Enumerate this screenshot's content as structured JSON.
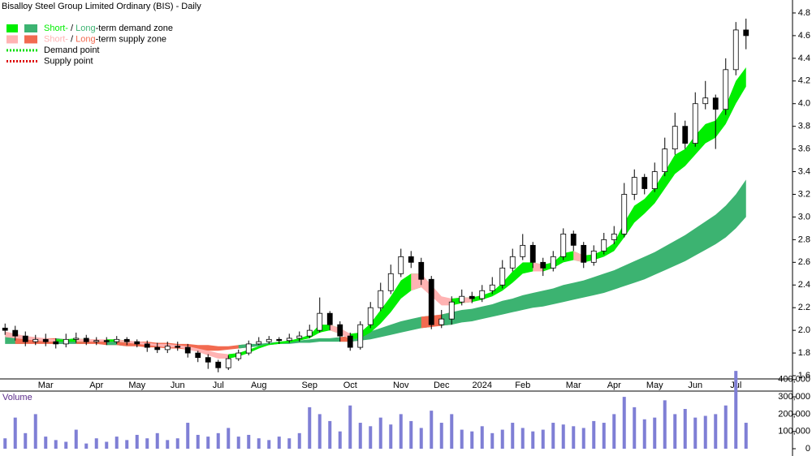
{
  "chart_data": [
    {
      "type": "candlestick",
      "title": "Bisalloy Steel Group Limited Ordinary (BIS) - Daily",
      "categories": [
        null,
        null,
        null,
        null,
        "Mar",
        null,
        null,
        null,
        null,
        "Apr",
        null,
        null,
        null,
        "May",
        null,
        null,
        null,
        "Jun",
        null,
        null,
        null,
        "Jul",
        null,
        null,
        null,
        "Aug",
        null,
        null,
        null,
        null,
        "Sep",
        null,
        null,
        null,
        "Oct",
        null,
        null,
        null,
        null,
        "Nov",
        null,
        null,
        null,
        "Dec",
        null,
        null,
        null,
        "2024",
        null,
        null,
        null,
        "Feb",
        null,
        null,
        null,
        null,
        "Mar",
        null,
        null,
        null,
        "Apr",
        null,
        null,
        null,
        "May",
        null,
        null,
        null,
        "Jun",
        null,
        null,
        null,
        "Jul",
        null
      ],
      "open": [
        2.02,
        2.0,
        1.95,
        1.9,
        1.92,
        1.9,
        1.88,
        1.92,
        1.93,
        1.9,
        1.91,
        1.9,
        1.92,
        1.9,
        1.88,
        1.85,
        1.83,
        1.86,
        1.85,
        1.8,
        1.76,
        1.72,
        1.67,
        1.75,
        1.8,
        1.88,
        1.9,
        1.92,
        1.91,
        1.93,
        1.95,
        2.0,
        2.15,
        2.05,
        1.95,
        1.85,
        2.05,
        2.2,
        2.35,
        2.5,
        2.65,
        2.6,
        2.45,
        2.05,
        2.1,
        2.25,
        2.3,
        2.28,
        2.35,
        2.4,
        2.55,
        2.65,
        2.75,
        2.6,
        2.55,
        2.65,
        2.85,
        2.75,
        2.6,
        2.7,
        2.8,
        2.85,
        3.2,
        3.35,
        3.25,
        3.4,
        3.6,
        3.8,
        3.65,
        4.0,
        4.05,
        3.95,
        4.3,
        4.65
      ],
      "high": [
        2.06,
        2.04,
        1.99,
        1.96,
        1.97,
        1.93,
        1.97,
        1.98,
        1.96,
        1.94,
        1.94,
        1.95,
        1.94,
        1.92,
        1.91,
        1.89,
        1.9,
        1.9,
        1.88,
        1.82,
        1.79,
        1.74,
        1.78,
        1.83,
        1.91,
        1.94,
        1.95,
        1.94,
        1.97,
        1.99,
        2.05,
        2.29,
        2.17,
        2.08,
        1.98,
        2.08,
        2.25,
        2.42,
        2.58,
        2.72,
        2.7,
        2.64,
        2.48,
        2.18,
        2.3,
        2.36,
        2.34,
        2.4,
        2.47,
        2.62,
        2.72,
        2.85,
        2.78,
        2.64,
        2.7,
        2.9,
        2.88,
        2.78,
        2.75,
        2.86,
        2.92,
        3.3,
        3.42,
        3.38,
        3.48,
        3.7,
        3.92,
        3.85,
        4.1,
        4.2,
        4.08,
        4.4,
        4.72,
        4.75
      ],
      "low": [
        1.96,
        1.91,
        1.86,
        1.87,
        1.86,
        1.84,
        1.85,
        1.89,
        1.87,
        1.87,
        1.87,
        1.88,
        1.87,
        1.85,
        1.81,
        1.8,
        1.8,
        1.82,
        1.76,
        1.72,
        1.66,
        1.63,
        1.65,
        1.73,
        1.78,
        1.87,
        1.88,
        1.88,
        1.89,
        1.9,
        1.93,
        1.98,
        2.0,
        1.9,
        1.82,
        1.83,
        2.02,
        2.17,
        2.32,
        2.47,
        2.55,
        2.4,
        2.01,
        2.02,
        2.05,
        2.22,
        2.24,
        2.25,
        2.32,
        2.37,
        2.52,
        2.62,
        2.55,
        2.48,
        2.52,
        2.62,
        2.7,
        2.55,
        2.57,
        2.67,
        2.76,
        2.82,
        3.15,
        3.2,
        3.22,
        3.36,
        3.55,
        3.6,
        3.62,
        3.95,
        3.6,
        3.9,
        4.25,
        4.48
      ],
      "close": [
        2.0,
        1.95,
        1.9,
        1.92,
        1.9,
        1.88,
        1.92,
        1.93,
        1.9,
        1.91,
        1.9,
        1.92,
        1.9,
        1.88,
        1.85,
        1.83,
        1.86,
        1.85,
        1.8,
        1.76,
        1.72,
        1.67,
        1.75,
        1.8,
        1.88,
        1.9,
        1.92,
        1.91,
        1.93,
        1.95,
        2.0,
        2.15,
        2.05,
        1.95,
        1.85,
        2.05,
        2.2,
        2.35,
        2.5,
        2.65,
        2.6,
        2.45,
        2.05,
        2.1,
        2.25,
        2.3,
        2.28,
        2.35,
        2.4,
        2.55,
        2.65,
        2.75,
        2.6,
        2.55,
        2.65,
        2.85,
        2.75,
        2.6,
        2.7,
        2.8,
        2.85,
        3.2,
        3.35,
        3.25,
        3.4,
        3.6,
        3.8,
        3.65,
        4.0,
        4.05,
        3.95,
        4.3,
        4.65,
        4.6
      ],
      "short_term_zone": {
        "lower": [
          1.94,
          1.93,
          1.92,
          1.91,
          1.9,
          1.9,
          1.9,
          1.9,
          1.9,
          1.9,
          1.9,
          1.9,
          1.89,
          1.88,
          1.87,
          1.86,
          1.85,
          1.85,
          1.83,
          1.81,
          1.78,
          1.75,
          1.75,
          1.77,
          1.8,
          1.84,
          1.87,
          1.88,
          1.89,
          1.91,
          1.93,
          1.98,
          2.0,
          1.97,
          1.92,
          1.93,
          1.98,
          2.06,
          2.16,
          2.28,
          2.35,
          2.38,
          2.3,
          2.22,
          2.22,
          2.24,
          2.25,
          2.27,
          2.3,
          2.35,
          2.42,
          2.5,
          2.52,
          2.52,
          2.55,
          2.6,
          2.62,
          2.6,
          2.62,
          2.65,
          2.7,
          2.82,
          2.95,
          3.03,
          3.12,
          3.25,
          3.38,
          3.45,
          3.55,
          3.65,
          3.7,
          3.82,
          4.0,
          4.15
        ],
        "upper": [
          1.99,
          1.97,
          1.95,
          1.94,
          1.93,
          1.92,
          1.92,
          1.93,
          1.92,
          1.92,
          1.92,
          1.92,
          1.91,
          1.9,
          1.89,
          1.88,
          1.88,
          1.87,
          1.86,
          1.84,
          1.82,
          1.8,
          1.79,
          1.8,
          1.83,
          1.86,
          1.88,
          1.9,
          1.91,
          1.93,
          1.96,
          2.05,
          2.05,
          2.02,
          1.97,
          1.98,
          2.06,
          2.18,
          2.3,
          2.44,
          2.5,
          2.5,
          2.4,
          2.3,
          2.28,
          2.29,
          2.29,
          2.31,
          2.34,
          2.42,
          2.52,
          2.6,
          2.6,
          2.58,
          2.6,
          2.68,
          2.7,
          2.66,
          2.67,
          2.71,
          2.77,
          2.95,
          3.1,
          3.16,
          3.26,
          3.4,
          3.55,
          3.6,
          3.72,
          3.82,
          3.85,
          3.98,
          4.2,
          4.32
        ]
      },
      "long_term_zone": {
        "lower": [
          1.88,
          1.88,
          1.88,
          1.88,
          1.88,
          1.88,
          1.88,
          1.88,
          1.88,
          1.88,
          1.87,
          1.87,
          1.86,
          1.86,
          1.85,
          1.85,
          1.84,
          1.84,
          1.83,
          1.82,
          1.82,
          1.82,
          1.83,
          1.84,
          1.85,
          1.86,
          1.87,
          1.88,
          1.88,
          1.89,
          1.89,
          1.9,
          1.9,
          1.9,
          1.9,
          1.91,
          1.92,
          1.94,
          1.96,
          1.98,
          2.0,
          2.02,
          2.03,
          2.04,
          2.05,
          2.07,
          2.08,
          2.1,
          2.12,
          2.14,
          2.16,
          2.18,
          2.2,
          2.21,
          2.23,
          2.25,
          2.27,
          2.29,
          2.31,
          2.33,
          2.36,
          2.39,
          2.42,
          2.45,
          2.49,
          2.53,
          2.57,
          2.61,
          2.66,
          2.71,
          2.76,
          2.82,
          2.9,
          3.0
        ],
        "upper": [
          1.95,
          1.94,
          1.94,
          1.93,
          1.93,
          1.93,
          1.92,
          1.92,
          1.92,
          1.92,
          1.91,
          1.91,
          1.91,
          1.9,
          1.9,
          1.89,
          1.89,
          1.88,
          1.88,
          1.87,
          1.87,
          1.86,
          1.86,
          1.87,
          1.88,
          1.88,
          1.89,
          1.9,
          1.9,
          1.91,
          1.92,
          1.93,
          1.93,
          1.94,
          1.95,
          1.97,
          1.99,
          2.02,
          2.05,
          2.08,
          2.1,
          2.12,
          2.13,
          2.14,
          2.16,
          2.18,
          2.19,
          2.21,
          2.23,
          2.26,
          2.28,
          2.31,
          2.33,
          2.35,
          2.37,
          2.4,
          2.42,
          2.44,
          2.47,
          2.5,
          2.53,
          2.57,
          2.61,
          2.65,
          2.69,
          2.74,
          2.79,
          2.84,
          2.9,
          2.96,
          3.02,
          3.1,
          3.2,
          3.33
        ]
      },
      "legend": [
        {
          "short": "Short-",
          "separator": " / ",
          "long": "Long",
          "rest": "-term demand zone",
          "short_color": "#00ee00",
          "long_color": "#3cb371"
        },
        {
          "short": "Short-",
          "separator": " / ",
          "long": "Long",
          "rest": "-term supply zone",
          "short_color": "#ffb3b3",
          "long_color": "#f26a50"
        },
        {
          "text": "Demand point",
          "color": "#00dd00"
        },
        {
          "text": "Supply point",
          "color": "#dd0000"
        }
      ],
      "ylim": [
        1.55,
        4.9
      ],
      "yticks": [
        1.6,
        1.8,
        {
          "value": 2,
          "label": "2.0"
        },
        2.2,
        2.4,
        2.6,
        2.8,
        {
          "value": 3,
          "label": "3.0"
        },
        3.2,
        3.4,
        3.6,
        3.8,
        {
          "value": 4,
          "label": "4.0"
        },
        4.2,
        4.4,
        4.6,
        4.8
      ]
    },
    {
      "type": "bar",
      "title": "Volume",
      "color": "#7f7fd5",
      "values": [
        60000,
        180000,
        90000,
        200000,
        70000,
        50000,
        40000,
        110000,
        30000,
        60000,
        40000,
        70000,
        50000,
        80000,
        60000,
        90000,
        50000,
        60000,
        150000,
        80000,
        70000,
        90000,
        120000,
        70000,
        80000,
        60000,
        50000,
        70000,
        60000,
        90000,
        240000,
        200000,
        160000,
        100000,
        250000,
        150000,
        130000,
        180000,
        140000,
        200000,
        160000,
        120000,
        220000,
        150000,
        200000,
        110000,
        100000,
        130000,
        90000,
        110000,
        150000,
        120000,
        100000,
        110000,
        150000,
        140000,
        130000,
        120000,
        160000,
        150000,
        200000,
        300000,
        240000,
        170000,
        180000,
        280000,
        200000,
        230000,
        180000,
        190000,
        200000,
        250000,
        450000,
        150000
      ],
      "ylim": [
        0,
        460000
      ],
      "yticks": [
        0,
        {
          "value": 100000,
          "label": "100,000"
        },
        {
          "value": 200000,
          "label": "200,000"
        },
        {
          "value": 300000,
          "label": "300,000"
        },
        {
          "value": 400000,
          "label": "400,000"
        }
      ]
    }
  ]
}
